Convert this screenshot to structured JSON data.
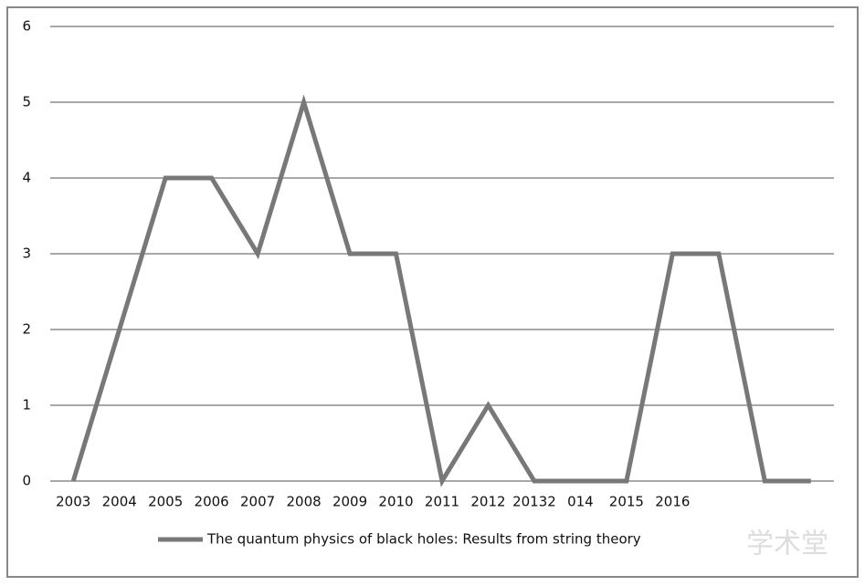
{
  "chart_data": {
    "type": "line",
    "categories": [
      "2003",
      "2004",
      "2005",
      "2006",
      "2007",
      "2008",
      "2009",
      "2010",
      "2011",
      "2012",
      "20132",
      "014",
      "2015",
      "2016",
      null,
      null,
      null
    ],
    "series": [
      {
        "name": "The quantum physics of black holes: Results from string theory",
        "color": "#787878",
        "values": [
          0,
          2,
          4,
          4,
          3,
          5,
          3,
          3,
          0,
          1,
          0,
          0,
          0,
          3,
          3,
          0,
          0
        ]
      }
    ],
    "ylim": [
      0,
      6
    ],
    "yticks": [
      0,
      1,
      2,
      3,
      4,
      5,
      6
    ],
    "grid": true,
    "legend": "bottom",
    "watermark": "学术堂"
  }
}
